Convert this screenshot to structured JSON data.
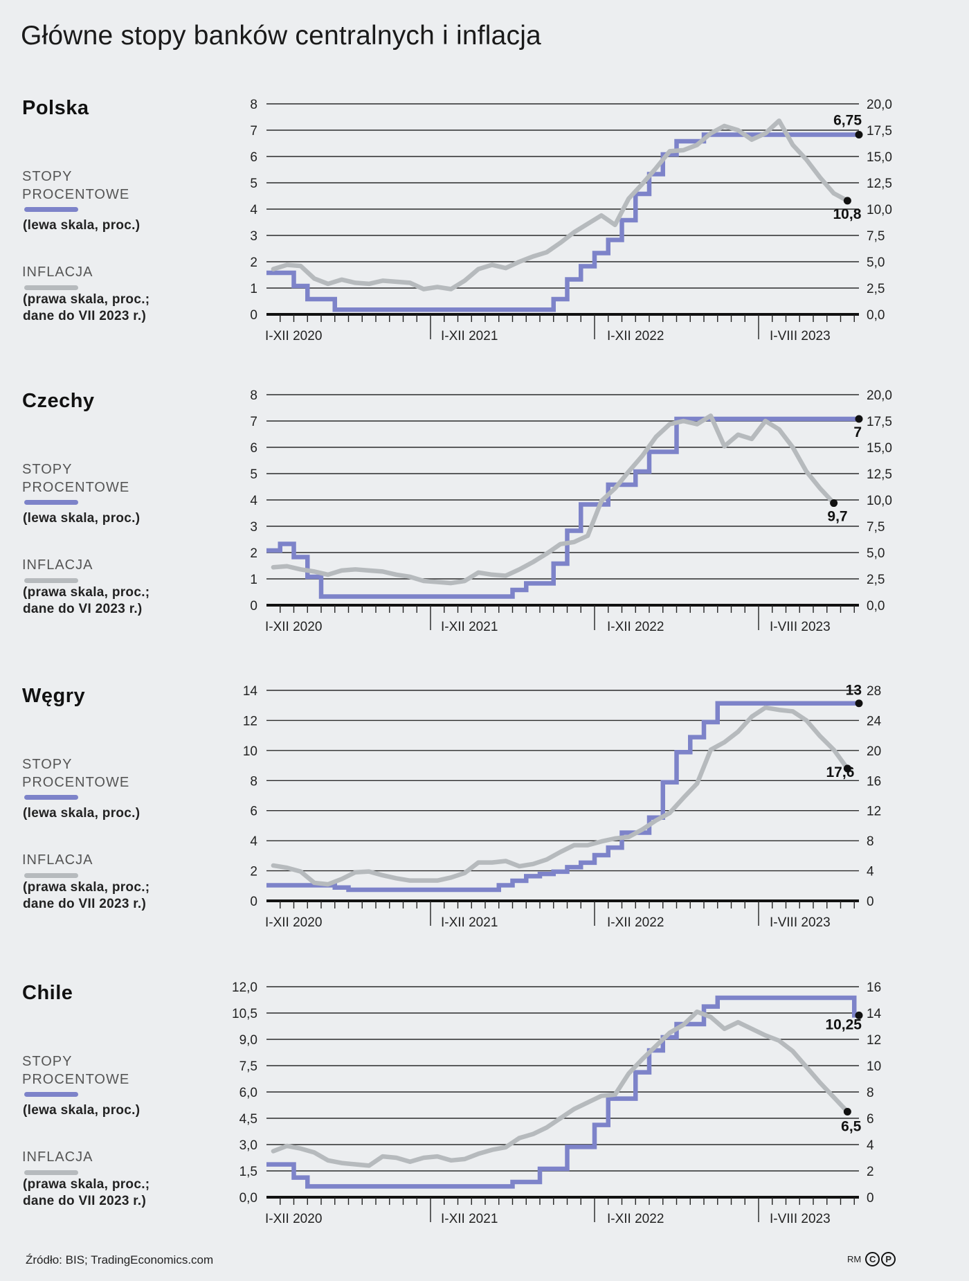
{
  "title": "Główne stopy banków centralnych i inflacja",
  "source": "Źródło: BIS; TradingEconomics.com",
  "copyright": {
    "initials": "RM",
    "c": "C",
    "p": "P"
  },
  "colors": {
    "rates": "#7d83c9",
    "inflation": "#b6babd",
    "background": "#eceef0",
    "grid": "#222222"
  },
  "chart_data": [
    {
      "type": "line",
      "country": "Polska",
      "legend": {
        "rates_head1": "STOPY",
        "rates_head2": "PROCENTOWE",
        "rates_note": "(lewa skala, proc.)",
        "inflation_head": "INFLACJA",
        "inflation_note1": "(prawa skala, proc.;",
        "inflation_note2": "dane do VII 2023 r.)"
      },
      "x_start": "2020-01",
      "x_labels": [
        "I-XII 2020",
        "I-XII 2021",
        "I-XII 2022",
        "I-VIII 2023"
      ],
      "left_axis": {
        "range": [
          0,
          8
        ],
        "ticks": [
          "0",
          "1",
          "2",
          "3",
          "4",
          "5",
          "6",
          "7",
          "8"
        ]
      },
      "right_axis": {
        "range": [
          0,
          20
        ],
        "ticks": [
          "0,0",
          "2,5",
          "5,0",
          "7,5",
          "10,0",
          "12,5",
          "15,0",
          "17,5",
          "20,0"
        ]
      },
      "series": [
        {
          "name": "Stopy procentowe",
          "axis": "left",
          "step": true,
          "values": [
            1.5,
            1.5,
            1.0,
            0.5,
            0.5,
            0.1,
            0.1,
            0.1,
            0.1,
            0.1,
            0.1,
            0.1,
            0.1,
            0.1,
            0.1,
            0.1,
            0.1,
            0.1,
            0.1,
            0.1,
            0.1,
            0.5,
            1.25,
            1.75,
            2.25,
            2.75,
            3.5,
            4.5,
            5.25,
            6.0,
            6.5,
            6.5,
            6.75,
            6.75,
            6.75,
            6.75,
            6.75,
            6.75,
            6.75,
            6.75,
            6.75,
            6.75,
            6.75,
            6.75
          ],
          "end_label": "6,75"
        },
        {
          "name": "Inflacja",
          "axis": "right",
          "step": false,
          "values": [
            4.3,
            4.7,
            4.6,
            3.4,
            2.9,
            3.3,
            3.0,
            2.9,
            3.2,
            3.1,
            3.0,
            2.4,
            2.6,
            2.4,
            3.2,
            4.3,
            4.7,
            4.4,
            5.0,
            5.5,
            5.9,
            6.8,
            7.8,
            8.6,
            9.4,
            8.5,
            11.0,
            12.4,
            13.9,
            15.5,
            15.6,
            16.1,
            17.2,
            17.9,
            17.5,
            16.6,
            17.2,
            18.4,
            16.1,
            14.7,
            13.0,
            11.5,
            10.8
          ],
          "end_label": "10,8"
        }
      ]
    },
    {
      "type": "line",
      "country": "Czechy",
      "legend": {
        "rates_head1": "STOPY",
        "rates_head2": "PROCENTOWE",
        "rates_note": "(lewa skala, proc.)",
        "inflation_head": "INFLACJA",
        "inflation_note1": "(prawa skala, proc.;",
        "inflation_note2": "dane do VI 2023 r.)"
      },
      "x_start": "2020-01",
      "x_labels": [
        "I-XII 2020",
        "I-XII 2021",
        "I-XII 2022",
        "I-VIII 2023"
      ],
      "left_axis": {
        "range": [
          0,
          8
        ],
        "ticks": [
          "0",
          "1",
          "2",
          "3",
          "4",
          "5",
          "6",
          "7",
          "8"
        ]
      },
      "right_axis": {
        "range": [
          0,
          20
        ],
        "ticks": [
          "0,0",
          "2,5",
          "5,0",
          "7,5",
          "10,0",
          "12,5",
          "15,0",
          "17,5",
          "20,0"
        ]
      },
      "series": [
        {
          "name": "Stopy procentowe",
          "axis": "left",
          "step": true,
          "values": [
            2.0,
            2.25,
            1.75,
            1.0,
            0.25,
            0.25,
            0.25,
            0.25,
            0.25,
            0.25,
            0.25,
            0.25,
            0.25,
            0.25,
            0.25,
            0.25,
            0.25,
            0.25,
            0.5,
            0.75,
            0.75,
            1.5,
            2.75,
            3.75,
            3.75,
            4.5,
            4.5,
            5.0,
            5.75,
            5.75,
            7.0,
            7.0,
            7.0,
            7.0,
            7.0,
            7.0,
            7.0,
            7.0,
            7.0,
            7.0,
            7.0,
            7.0,
            7.0,
            7.0
          ],
          "end_label": "7"
        },
        {
          "name": "Inflacja",
          "axis": "right",
          "step": false,
          "values": [
            3.6,
            3.7,
            3.4,
            3.2,
            2.9,
            3.3,
            3.4,
            3.3,
            3.2,
            2.9,
            2.7,
            2.3,
            2.2,
            2.1,
            2.3,
            3.1,
            2.9,
            2.8,
            3.4,
            4.1,
            4.9,
            5.8,
            6.0,
            6.6,
            9.9,
            11.1,
            12.7,
            14.2,
            16.0,
            17.2,
            17.5,
            17.2,
            18.0,
            15.1,
            16.2,
            15.8,
            17.5,
            16.7,
            15.0,
            12.7,
            11.1,
            9.7
          ],
          "end_label": "9,7"
        }
      ]
    },
    {
      "type": "line",
      "country": "Węgry",
      "legend": {
        "rates_head1": "STOPY",
        "rates_head2": "PROCENTOWE",
        "rates_note": "(lewa skala, proc.)",
        "inflation_head": "INFLACJA",
        "inflation_note1": "(prawa skala, proc.;",
        "inflation_note2": "dane do VII 2023 r.)"
      },
      "x_start": "2020-01",
      "x_labels": [
        "I-XII 2020",
        "I-XII 2021",
        "I-XII 2022",
        "I-VIII 2023"
      ],
      "left_axis": {
        "range": [
          0,
          14
        ],
        "ticks": [
          "0",
          "2",
          "4",
          "6",
          "8",
          "10",
          "12",
          "14"
        ]
      },
      "right_axis": {
        "range": [
          0,
          28
        ],
        "ticks": [
          "0",
          "4",
          "8",
          "12",
          "16",
          "20",
          "24",
          "28"
        ]
      },
      "series": [
        {
          "name": "Stopy procentowe",
          "axis": "left",
          "step": true,
          "values": [
            0.9,
            0.9,
            0.9,
            0.9,
            0.9,
            0.75,
            0.6,
            0.6,
            0.6,
            0.6,
            0.6,
            0.6,
            0.6,
            0.6,
            0.6,
            0.6,
            0.6,
            0.9,
            1.2,
            1.5,
            1.65,
            1.8,
            2.1,
            2.4,
            2.9,
            3.4,
            4.4,
            4.4,
            5.4,
            7.75,
            9.75,
            10.75,
            11.75,
            13,
            13,
            13,
            13,
            13,
            13,
            13,
            13,
            13,
            13,
            13
          ],
          "end_label": "13"
        },
        {
          "name": "Inflacja",
          "axis": "right",
          "step": false,
          "values": [
            4.7,
            4.4,
            3.9,
            2.4,
            2.2,
            2.9,
            3.8,
            3.9,
            3.4,
            3.0,
            2.7,
            2.7,
            2.7,
            3.1,
            3.7,
            5.1,
            5.1,
            5.3,
            4.6,
            4.9,
            5.5,
            6.5,
            7.4,
            7.4,
            7.9,
            8.3,
            8.5,
            9.5,
            10.7,
            11.7,
            13.7,
            15.6,
            20.1,
            21.1,
            22.5,
            24.5,
            25.7,
            25.4,
            25.2,
            24.0,
            21.9,
            20.1,
            17.6
          ],
          "end_label": "17,6"
        }
      ]
    },
    {
      "type": "line",
      "country": "Chile",
      "legend": {
        "rates_head1": "STOPY",
        "rates_head2": "PROCENTOWE",
        "rates_note": "(lewa skala, proc.)",
        "inflation_head": "INFLACJA",
        "inflation_note1": "(prawa skala, proc.;",
        "inflation_note2": "dane do VII 2023 r.)"
      },
      "x_start": "2020-01",
      "x_labels": [
        "I-XII 2020",
        "I-XII 2021",
        "I-XII 2022",
        "I-VIII 2023"
      ],
      "left_axis": {
        "range": [
          0,
          12
        ],
        "ticks": [
          "0,0",
          "1,5",
          "3,0",
          "4,5",
          "6,0",
          "7,5",
          "9,0",
          "10,5",
          "12,0"
        ]
      },
      "right_axis": {
        "range": [
          0,
          16
        ],
        "ticks": [
          "0",
          "2",
          "4",
          "6",
          "8",
          "10",
          "12",
          "14",
          "16"
        ]
      },
      "series": [
        {
          "name": "Stopy procentowe",
          "axis": "left",
          "step": true,
          "values": [
            1.75,
            1.75,
            1.0,
            0.5,
            0.5,
            0.5,
            0.5,
            0.5,
            0.5,
            0.5,
            0.5,
            0.5,
            0.5,
            0.5,
            0.5,
            0.5,
            0.5,
            0.5,
            0.75,
            0.75,
            1.5,
            1.5,
            2.75,
            2.75,
            4.0,
            5.5,
            5.5,
            7.0,
            8.25,
            9.0,
            9.75,
            9.75,
            10.75,
            11.25,
            11.25,
            11.25,
            11.25,
            11.25,
            11.25,
            11.25,
            11.25,
            11.25,
            11.25,
            10.25
          ],
          "end_label": "10,25"
        },
        {
          "name": "Inflacja",
          "axis": "right",
          "step": false,
          "values": [
            3.5,
            3.9,
            3.7,
            3.4,
            2.8,
            2.6,
            2.5,
            2.4,
            3.1,
            3.0,
            2.7,
            3.0,
            3.1,
            2.8,
            2.9,
            3.3,
            3.6,
            3.8,
            4.5,
            4.8,
            5.3,
            6.0,
            6.7,
            7.2,
            7.7,
            7.8,
            9.4,
            10.5,
            11.5,
            12.5,
            13.1,
            14.1,
            13.7,
            12.8,
            13.3,
            12.8,
            12.3,
            11.9,
            11.1,
            9.9,
            8.7,
            7.6,
            6.5
          ],
          "end_label": "6,5"
        }
      ]
    }
  ]
}
